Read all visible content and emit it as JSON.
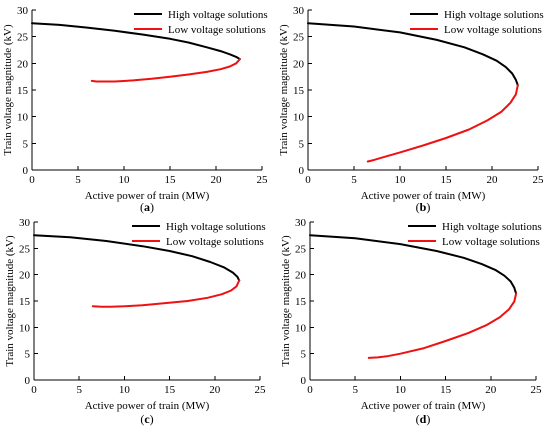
{
  "legend_colors": {
    "high": "#000000",
    "low": "#ee1111"
  },
  "chart_data": [
    {
      "type": "line",
      "panel_label": "a",
      "xlabel": "Active power of train (MW)",
      "ylabel": "Train voltage magnitude (kV)",
      "xlim": [
        0,
        25
      ],
      "ylim": [
        0,
        30
      ],
      "xticks": [
        0,
        5,
        10,
        15,
        20,
        25
      ],
      "yticks": [
        0,
        5,
        10,
        15,
        20,
        25,
        30
      ],
      "legend": "top-right",
      "series": [
        {
          "name": "High voltage solutions",
          "color": "#000000",
          "x": [
            0,
            3,
            6,
            9,
            12,
            15,
            17,
            19,
            20.5,
            21.5,
            22.2,
            22.6
          ],
          "y": [
            27.5,
            27.2,
            26.7,
            26.1,
            25.4,
            24.6,
            23.9,
            23.0,
            22.3,
            21.7,
            21.2,
            20.8
          ]
        },
        {
          "name": "Low voltage solutions",
          "color": "#ee1111",
          "x": [
            22.6,
            22.2,
            21.5,
            20.5,
            19,
            17,
            15,
            13,
            11,
            9,
            8,
            7,
            6.5
          ],
          "y": [
            20.8,
            20.0,
            19.4,
            18.9,
            18.4,
            17.9,
            17.5,
            17.1,
            16.8,
            16.6,
            16.6,
            16.6,
            16.7
          ]
        }
      ]
    },
    {
      "type": "line",
      "panel_label": "b",
      "xlabel": "Active power of train (MW)",
      "ylabel": "Train voltage magnitude (kV)",
      "xlim": [
        0,
        25
      ],
      "ylim": [
        0,
        30
      ],
      "xticks": [
        0,
        5,
        10,
        15,
        20,
        25
      ],
      "yticks": [
        0,
        5,
        10,
        15,
        20,
        25,
        30
      ],
      "legend": "top-right",
      "series": [
        {
          "name": "High voltage solutions",
          "color": "#000000",
          "x": [
            0,
            5,
            10,
            14,
            17,
            19,
            20.5,
            21.5,
            22.2,
            22.6,
            22.8
          ],
          "y": [
            27.5,
            26.9,
            25.8,
            24.4,
            23.0,
            21.7,
            20.5,
            19.3,
            18.1,
            16.9,
            15.9
          ]
        },
        {
          "name": "Low voltage solutions",
          "color": "#ee1111",
          "x": [
            22.8,
            22.6,
            22.0,
            21.0,
            19.5,
            17.5,
            15,
            12.5,
            10,
            8,
            7,
            6.5
          ],
          "y": [
            15.9,
            14.2,
            12.6,
            10.9,
            9.3,
            7.6,
            6.0,
            4.6,
            3.3,
            2.3,
            1.8,
            1.6
          ]
        }
      ]
    },
    {
      "type": "line",
      "panel_label": "c",
      "xlabel": "Active power of train (MW)",
      "ylabel": "Train voltage magnitude (kV)",
      "xlim": [
        0,
        25
      ],
      "ylim": [
        0,
        30
      ],
      "xticks": [
        0,
        5,
        10,
        15,
        20,
        25
      ],
      "yticks": [
        0,
        5,
        10,
        15,
        20,
        25,
        30
      ],
      "legend": "top-right",
      "series": [
        {
          "name": "High voltage solutions",
          "color": "#000000",
          "x": [
            0,
            4,
            8,
            12,
            15,
            17.5,
            19.5,
            21,
            22,
            22.5,
            22.7
          ],
          "y": [
            27.5,
            27.1,
            26.4,
            25.4,
            24.5,
            23.5,
            22.4,
            21.4,
            20.4,
            19.6,
            18.9
          ]
        },
        {
          "name": "Low voltage solutions",
          "color": "#ee1111",
          "x": [
            22.7,
            22.4,
            21.8,
            20.8,
            19.2,
            17,
            14.5,
            12,
            10,
            8.5,
            7.5,
            6.5
          ],
          "y": [
            18.9,
            17.8,
            17.0,
            16.3,
            15.6,
            15.0,
            14.6,
            14.2,
            14.0,
            13.9,
            13.9,
            14.0
          ]
        }
      ]
    },
    {
      "type": "line",
      "panel_label": "d",
      "xlabel": "Active power of train (MW)",
      "ylabel": "Train voltage magnitude (kV)",
      "xlim": [
        0,
        25
      ],
      "ylim": [
        0,
        30
      ],
      "xticks": [
        0,
        5,
        10,
        15,
        20,
        25
      ],
      "yticks": [
        0,
        5,
        10,
        15,
        20,
        25,
        30
      ],
      "legend": "top-right",
      "series": [
        {
          "name": "High voltage solutions",
          "color": "#000000",
          "x": [
            0,
            5,
            10,
            14,
            17,
            19,
            20.5,
            21.5,
            22.2,
            22.6,
            22.8
          ],
          "y": [
            27.5,
            26.9,
            25.8,
            24.5,
            23.2,
            22.0,
            20.9,
            19.8,
            18.7,
            17.5,
            16.4
          ]
        },
        {
          "name": "Low voltage solutions",
          "color": "#ee1111",
          "x": [
            22.8,
            22.6,
            22.0,
            21.0,
            19.5,
            17.5,
            15,
            12.5,
            10,
            8.5,
            7.5,
            6.5
          ],
          "y": [
            16.4,
            14.9,
            13.4,
            11.9,
            10.4,
            8.9,
            7.4,
            6.0,
            5.0,
            4.5,
            4.3,
            4.2
          ]
        }
      ]
    }
  ]
}
